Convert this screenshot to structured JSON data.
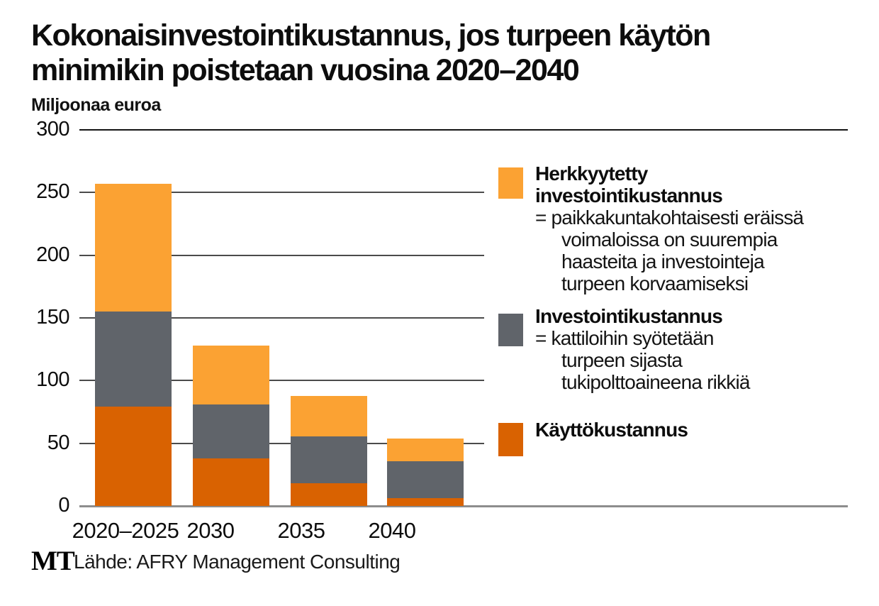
{
  "title": {
    "line1": "Kokonaisinvestointikustannus, jos turpeen käytön",
    "line2": "minimikin poistetaan vuosina 2020–2040"
  },
  "subtitle": "Miljoonaa euroa",
  "source": {
    "logo": "MT",
    "text": "Lähde: AFRY Management Consulting"
  },
  "colors": {
    "light_orange": "#FBA233",
    "gray": "#60646A",
    "dark_orange": "#D96201"
  },
  "chart_data": {
    "type": "bar",
    "stacked": true,
    "title": "Kokonaisinvestointikustannus, jos turpeen käytön minimikin poistetaan vuosina 2020–2040",
    "ylabel": "Miljoonaa euroa",
    "xlabel": "",
    "categories": [
      "2020–2025",
      "2030",
      "2035",
      "2040"
    ],
    "series": [
      {
        "name": "Käyttökustannus",
        "color_key": "dark_orange",
        "values": [
          79,
          38,
          18,
          6
        ]
      },
      {
        "name": "Investointikustannus",
        "color_key": "gray",
        "values": [
          76,
          43,
          38,
          30
        ]
      },
      {
        "name": "Herkkyytetty investointikustannus",
        "color_key": "light_orange",
        "values": [
          102,
          47,
          32,
          18
        ]
      }
    ],
    "totals": [
      257,
      128,
      88,
      54
    ],
    "ylim": [
      0,
      300
    ],
    "ytick_step": 50,
    "yticks": [
      "0",
      "50",
      "100",
      "150",
      "200",
      "250",
      "300"
    ],
    "grid": true,
    "legend_position": "right"
  },
  "legend": {
    "items": [
      {
        "color_key": "light_orange",
        "name_lines": [
          "Herkkyytetty",
          "investointikustannus"
        ],
        "desc_lines": [
          "= paikkakuntakohtaisesti eräissä",
          "voimaloissa on suurempia",
          "haasteita ja investointeja",
          "turpeen korvaamiseksi"
        ]
      },
      {
        "color_key": "gray",
        "name_lines": [
          "Investointikustannus"
        ],
        "desc_lines": [
          "= kattiloihin syötetään",
          "turpeen sijasta",
          "tukipolttoaineena rikkiä"
        ]
      },
      {
        "color_key": "dark_orange",
        "name_lines": [
          "Käyttökustannus"
        ],
        "desc_lines": []
      }
    ]
  }
}
